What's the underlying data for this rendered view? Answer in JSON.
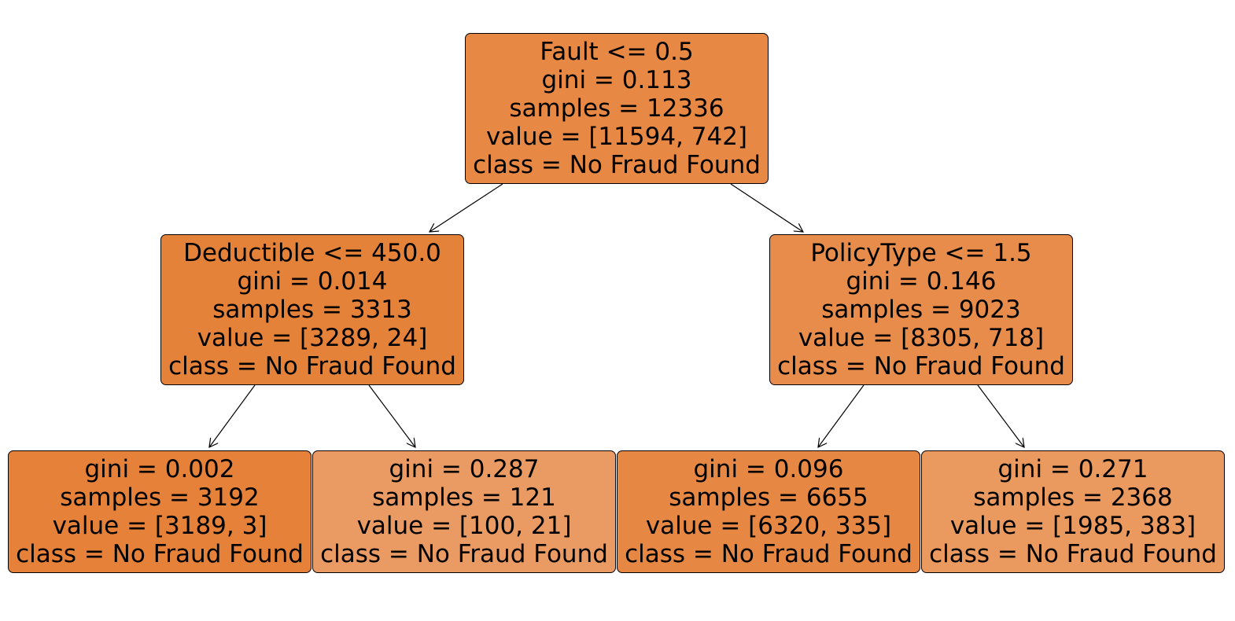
{
  "nodes": {
    "root": {
      "split": "Fault <= 0.5",
      "gini": "gini = 0.113",
      "samples": "samples = 12336",
      "value": "value = [11594, 742]",
      "class": "class = No Fraud Found",
      "fill": "#e78945"
    },
    "left": {
      "split": "Deductible <= 450.0",
      "gini": "gini = 0.014",
      "samples": "samples = 3313",
      "value": "value = [3289, 24]",
      "class": "class = No Fraud Found",
      "fill": "#e5823a"
    },
    "right": {
      "split": "PolicyType <= 1.5",
      "gini": "gini = 0.146",
      "samples": "samples = 9023",
      "value": "value = [8305, 718]",
      "class": "class = No Fraud Found",
      "fill": "#e78c4a"
    },
    "left_left": {
      "gini": "gini = 0.002",
      "samples": "samples = 3192",
      "value": "value = [3189, 3]",
      "class": "class = No Fraud Found",
      "fill": "#e58139"
    },
    "left_right": {
      "gini": "gini = 0.287",
      "samples": "samples = 121",
      "value": "value = [100, 21]",
      "class": "class = No Fraud Found",
      "fill": "#ea9b63"
    },
    "right_left": {
      "gini": "gini = 0.096",
      "samples": "samples = 6655",
      "value": "value = [6320, 335]",
      "class": "class = No Fraud Found",
      "fill": "#e68844"
    },
    "right_right": {
      "gini": "gini = 0.271",
      "samples": "samples = 2368",
      "value": "value = [1985, 383]",
      "class": "class = No Fraud Found",
      "fill": "#ea995f"
    }
  }
}
